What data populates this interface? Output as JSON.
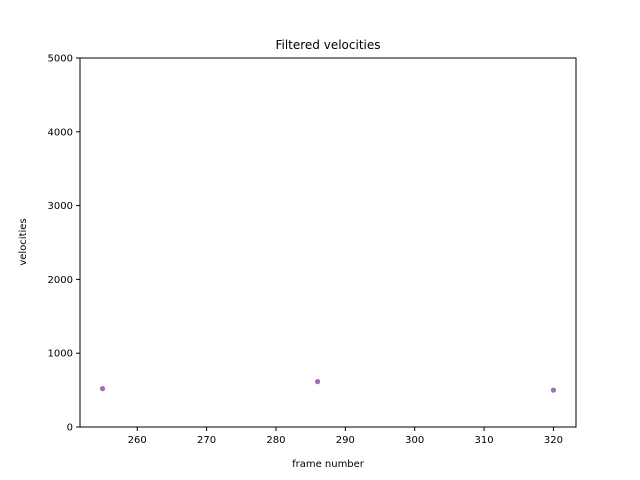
{
  "chart_data": {
    "type": "scatter",
    "title": "Filtered velocities",
    "xlabel": "frame number",
    "ylabel": "velocities",
    "xlim": [
      251.75,
      323.25
    ],
    "ylim": [
      0,
      5000
    ],
    "xticks": [
      260,
      270,
      280,
      290,
      300,
      310,
      320
    ],
    "yticks": [
      0,
      1000,
      2000,
      3000,
      4000,
      5000
    ],
    "grid": false,
    "points": [
      {
        "x": 255,
        "y": 520
      },
      {
        "x": 286,
        "y": 615
      },
      {
        "x": 320,
        "y": 500
      }
    ],
    "marker_color": "#7f3f98"
  }
}
